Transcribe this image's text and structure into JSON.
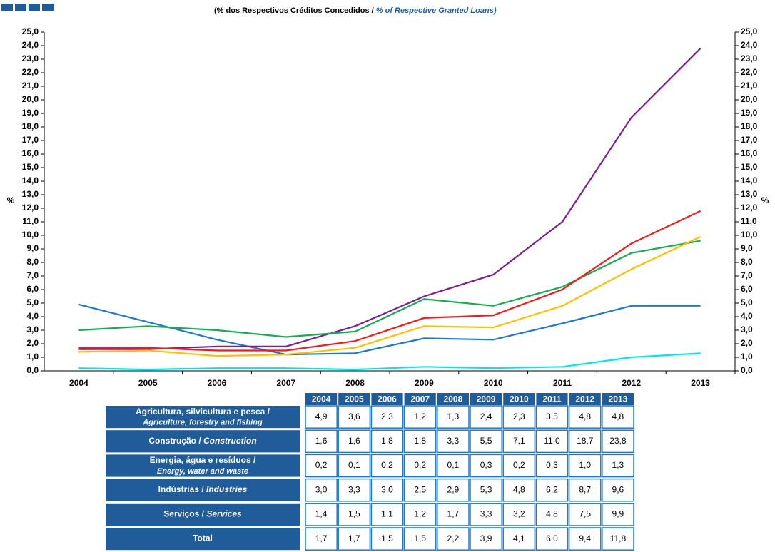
{
  "chart_data": {
    "type": "line",
    "subtitle_pt": "(% dos Respectivos Créditos Concedidos /",
    "subtitle_en": "% of Respective Granted Loans)",
    "ylabel": "%",
    "y2label": "%",
    "categories": [
      "2004",
      "2005",
      "2006",
      "2007",
      "2008",
      "2009",
      "2010",
      "2011",
      "2012",
      "2013"
    ],
    "ylim": [
      0,
      25
    ],
    "y2lim": [
      0,
      25
    ],
    "yticks": [
      {
        "value": 0,
        "label": "0,0"
      },
      {
        "value": 1,
        "label": "1,0"
      },
      {
        "value": 2,
        "label": "2,0"
      },
      {
        "value": 3,
        "label": "3,0"
      },
      {
        "value": 4,
        "label": "4,0"
      },
      {
        "value": 5,
        "label": "5,0"
      },
      {
        "value": 6,
        "label": "6,0"
      },
      {
        "value": 7,
        "label": "7,0"
      },
      {
        "value": 8,
        "label": "8,0"
      },
      {
        "value": 9,
        "label": "9,0"
      },
      {
        "value": 10,
        "label": "10,0"
      },
      {
        "value": 11,
        "label": "11,0"
      },
      {
        "value": 12,
        "label": "12,0"
      },
      {
        "value": 13,
        "label": "13,0"
      },
      {
        "value": 14,
        "label": "14,0"
      },
      {
        "value": 15,
        "label": "15,0"
      },
      {
        "value": 16,
        "label": "16,0"
      },
      {
        "value": 17,
        "label": "17,0"
      },
      {
        "value": 18,
        "label": "18,0"
      },
      {
        "value": 19,
        "label": "19,0"
      },
      {
        "value": 20,
        "label": "20,0"
      },
      {
        "value": 21,
        "label": "21,0"
      },
      {
        "value": 22,
        "label": "22,0"
      },
      {
        "value": 23,
        "label": "23,0"
      },
      {
        "value": 24,
        "label": "24,0"
      },
      {
        "value": 25,
        "label": "25,0"
      }
    ],
    "y2ticks": [
      {
        "value": 0,
        "label": "0,0"
      },
      {
        "value": 1,
        "label": "1,0"
      },
      {
        "value": 2,
        "label": "2,0"
      },
      {
        "value": 3,
        "label": "3,0"
      },
      {
        "value": 4,
        "label": "4,0"
      },
      {
        "value": 5,
        "label": "5,0"
      },
      {
        "value": 6,
        "label": "6,0"
      },
      {
        "value": 7,
        "label": "7,0"
      },
      {
        "value": 8,
        "label": "8,0"
      },
      {
        "value": 9,
        "label": "9,0"
      },
      {
        "value": 10,
        "label": "10,0"
      },
      {
        "value": 11,
        "label": "11,0"
      },
      {
        "value": 12,
        "label": "12,0"
      },
      {
        "value": 13,
        "label": "13,0"
      },
      {
        "value": 14,
        "label": "14,0"
      },
      {
        "value": 15,
        "label": "15,0"
      },
      {
        "value": 16,
        "label": "16,0"
      },
      {
        "value": 17,
        "label": "17,0"
      },
      {
        "value": 18,
        "label": "18,0"
      },
      {
        "value": 19,
        "label": "19,0"
      },
      {
        "value": 20,
        "label": "20,0"
      },
      {
        "value": 21,
        "label": "21,0"
      },
      {
        "value": 22,
        "label": "22,0"
      },
      {
        "value": 23,
        "label": "23,0"
      },
      {
        "value": 24,
        "label": "24,0"
      },
      {
        "value": 25,
        "label": "25,0"
      }
    ],
    "series": [
      {
        "name": "Agricultura, silvicultura e pesca /",
        "name_en": "Agriculture, forestry and fishing",
        "color": "#1f78c8",
        "values": [
          4.9,
          3.6,
          2.3,
          1.2,
          1.3,
          2.4,
          2.3,
          3.5,
          4.8,
          4.8
        ],
        "value_labels": [
          "4,9",
          "3,6",
          "2,3",
          "1,2",
          "1,3",
          "2,4",
          "2,3",
          "3,5",
          "4,8",
          "4,8"
        ]
      },
      {
        "name": "Construção /",
        "name_en": "Construction",
        "color": "#7b1f8f",
        "values": [
          1.6,
          1.6,
          1.8,
          1.8,
          3.3,
          5.5,
          7.1,
          11.0,
          18.7,
          23.8
        ],
        "value_labels": [
          "1,6",
          "1,6",
          "1,8",
          "1,8",
          "3,3",
          "5,5",
          "7,1",
          "11,0",
          "18,7",
          "23,8"
        ]
      },
      {
        "name": "Energia, água e resíduos /",
        "name_en": "Energy, water and waste",
        "color": "#00e5ee",
        "values": [
          0.2,
          0.1,
          0.2,
          0.2,
          0.1,
          0.3,
          0.2,
          0.3,
          1.0,
          1.3
        ],
        "value_labels": [
          "0,2",
          "0,1",
          "0,2",
          "0,2",
          "0,1",
          "0,3",
          "0,2",
          "0,3",
          "1,0",
          "1,3"
        ]
      },
      {
        "name": "Indústrias /",
        "name_en": "Industries",
        "color": "#1aaa55",
        "values": [
          3.0,
          3.3,
          3.0,
          2.5,
          2.9,
          5.3,
          4.8,
          6.2,
          8.7,
          9.6
        ],
        "value_labels": [
          "3,0",
          "3,3",
          "3,0",
          "2,5",
          "2,9",
          "5,3",
          "4,8",
          "6,2",
          "8,7",
          "9,6"
        ]
      },
      {
        "name": "Serviços /",
        "name_en": "Services",
        "color": "#ffc000",
        "values": [
          1.4,
          1.5,
          1.1,
          1.2,
          1.7,
          3.3,
          3.2,
          4.8,
          7.5,
          9.9
        ],
        "value_labels": [
          "1,4",
          "1,5",
          "1,1",
          "1,2",
          "1,7",
          "3,3",
          "3,2",
          "4,8",
          "7,5",
          "9,9"
        ]
      },
      {
        "name": "Total",
        "color": "#ee1c1c",
        "values": [
          1.7,
          1.7,
          1.5,
          1.5,
          2.2,
          3.9,
          4.1,
          6.0,
          9.4,
          11.8
        ],
        "value_labels": [
          "1,7",
          "1,7",
          "1,5",
          "1,5",
          "2,2",
          "3,9",
          "4,1",
          "6,0",
          "9,4",
          "11,8"
        ]
      }
    ]
  }
}
